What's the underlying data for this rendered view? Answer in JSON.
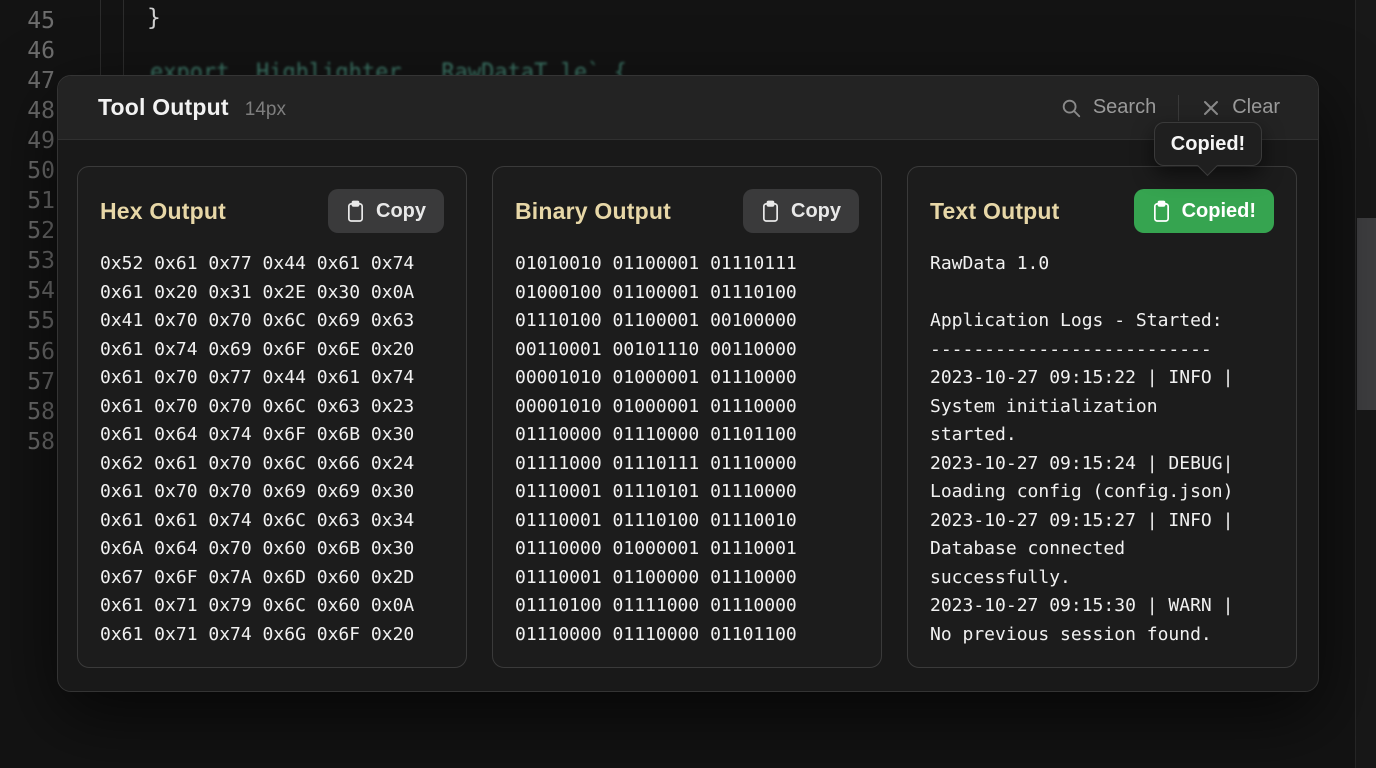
{
  "editor": {
    "line_numbers": [
      "45",
      "46",
      "47",
      "48",
      "49",
      "50",
      "51",
      "52",
      "53",
      "54",
      "55",
      "56",
      "57",
      "58",
      "58"
    ],
    "visible_code_line_45": "}",
    "occluded_code_fragment": "export  Highlighter   RawDataT le` {"
  },
  "panel": {
    "title": "Tool Output",
    "font_size_label": "14px",
    "search_label": "Search",
    "clear_label": "Clear"
  },
  "tooltip": {
    "label": "Copied!"
  },
  "cards": [
    {
      "title": "Hex Output",
      "button_label": "Copy",
      "lines": [
        "0x52 0x61 0x77 0x44 0x61 0x74",
        "0x61 0x20 0x31 0x2E 0x30 0x0A",
        "0x41 0x70 0x70 0x6C 0x69 0x63",
        "0x61 0x74 0x69 0x6F 0x6E 0x20",
        "0x61 0x70 0x77 0x44 0x61 0x74",
        "0x61 0x70 0x70 0x6C 0x63 0x23",
        "0x61 0x64 0x74 0x6F 0x6B 0x30",
        "0x62 0x61 0x70 0x6C 0x66 0x24",
        "0x61 0x70 0x70 0x69 0x69 0x30",
        "0x61 0x61 0x74 0x6C 0x63 0x34",
        "0x6A 0x64 0x70 0x60 0x6B 0x30",
        "0x67 0x6F 0x7A 0x6D 0x60 0x2D",
        "0x61 0x71 0x79 0x6C 0x60 0x0A",
        "0x61 0x71 0x74 0x6G 0x6F 0x20"
      ]
    },
    {
      "title": "Binary Output",
      "button_label": "Copy",
      "lines": [
        "01010010 01100001 01110111",
        "01000100 01100001 01110100",
        "01110100 01100001 00100000",
        "00110001 00101110 00110000",
        "00001010 01000001 01110000",
        "00001010 01000001 01110000",
        "01110000 01110000 01101100",
        "01111000 01110111 01110000",
        "01110001 01110101 01110000",
        "01110001 01110100 01110010",
        "01110000 01000001 01110001",
        "01110001 01100000 01110000",
        "01110100 01111000 01110000",
        "01110000 01110000 01101100"
      ]
    },
    {
      "title": "Text Output",
      "button_label": "Copied!",
      "lines": [
        "RawData 1.0",
        "",
        "Application Logs - Started:",
        "--------------------------",
        "2023-10-27 09:15:22 | INFO |",
        "System initialization",
        "started.",
        "2023-10-27 09:15:24 | DEBUG|",
        "Loading config (config.json)",
        "2023-10-27 09:15:27 | INFO |",
        "Database connected",
        "successfully.",
        "2023-10-27 09:15:30 | WARN |",
        "No previous session found."
      ]
    }
  ],
  "colors": {
    "accent_gold": "#e7d7a7",
    "copied_green": "#36a450"
  }
}
